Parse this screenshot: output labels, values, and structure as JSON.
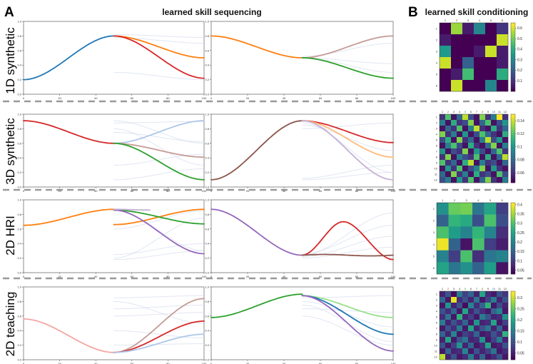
{
  "panel_a_letter": "A",
  "panel_b_letter": "B",
  "title_a": "learned skill sequencing",
  "title_b": "learned skill conditioning",
  "row_labels": [
    "1D synthetic",
    "3D synthetic",
    "2D HRI",
    "2D teaching"
  ],
  "colors": {
    "blue": "#1f77b4",
    "orange": "#ff7f0e",
    "green": "#2ca02c",
    "red": "#d62728",
    "purple": "#9467bd",
    "brown": "#8c564b",
    "pink": "#f4a6a0",
    "tan": "#c49c94",
    "lightblue": "#aec7e8",
    "lightgreen": "#98df8a",
    "lightorange": "#ffbb78",
    "lavender": "#c5b0d5",
    "divider": "#999999"
  },
  "axis": {
    "xticks": [
      0,
      20,
      40,
      60,
      80,
      100
    ],
    "yticks": [
      0.0,
      0.2,
      0.4,
      0.6,
      0.8,
      1.0
    ]
  },
  "chart_data": [
    {
      "id": "1d-left",
      "type": "line",
      "xlim": [
        0,
        100
      ],
      "ylim": [
        0,
        1
      ],
      "series": [
        {
          "color": "blue",
          "x0": 0,
          "x1": 50,
          "y0": 0.2,
          "y1": 0.8,
          "shape": "sig"
        },
        {
          "color": "orange",
          "x0": 50,
          "x1": 100,
          "y0": 0.8,
          "y1": 0.5,
          "shape": "sig"
        },
        {
          "color": "red",
          "x0": 50,
          "x1": 100,
          "y0": 0.8,
          "y1": 0.22,
          "shape": "sig"
        }
      ],
      "faded": [
        {
          "y0": 0.82,
          "y1": 0.78
        },
        {
          "y0": 0.78,
          "y1": 0.7
        },
        {
          "y0": 0.3,
          "y1": 0.2
        }
      ]
    },
    {
      "id": "1d-right",
      "type": "line",
      "xlim": [
        0,
        100
      ],
      "ylim": [
        0,
        1
      ],
      "series": [
        {
          "color": "orange",
          "x0": 0,
          "x1": 50,
          "y0": 0.8,
          "y1": 0.5,
          "shape": "sig"
        },
        {
          "color": "tan",
          "x0": 50,
          "x1": 100,
          "y0": 0.5,
          "y1": 0.8,
          "shape": "sig"
        },
        {
          "color": "green",
          "x0": 50,
          "x1": 100,
          "y0": 0.5,
          "y1": 0.22,
          "shape": "sig"
        }
      ],
      "faded": [
        {
          "y0": 0.5,
          "y1": 0.3
        },
        {
          "y0": 0.5,
          "y1": 0.42
        },
        {
          "y0": 0.52,
          "y1": 0.7
        }
      ]
    },
    {
      "id": "3d-left",
      "type": "line",
      "xlim": [
        0,
        100
      ],
      "ylim": [
        0,
        1
      ],
      "series": [
        {
          "color": "red",
          "x0": 0,
          "x1": 50,
          "y0": 0.91,
          "y1": 0.6,
          "shape": "sig"
        },
        {
          "color": "lightblue",
          "x0": 50,
          "x1": 100,
          "y0": 0.6,
          "y1": 0.91,
          "shape": "sig"
        },
        {
          "color": "tan",
          "x0": 50,
          "x1": 100,
          "y0": 0.6,
          "y1": 0.41,
          "shape": "sig"
        },
        {
          "color": "green",
          "x0": 50,
          "x1": 100,
          "y0": 0.6,
          "y1": 0.1,
          "shape": "sig"
        }
      ],
      "faded": [
        {
          "y0": 0.91,
          "y1": 0.6
        },
        {
          "y0": 0.88,
          "y1": 0.9
        },
        {
          "y0": 0.8,
          "y1": 0.3
        },
        {
          "y0": 0.3,
          "y1": 0.45
        },
        {
          "y0": 0.1,
          "y1": 0.25
        },
        {
          "y0": 0.75,
          "y1": 0.62
        }
      ]
    },
    {
      "id": "3d-right",
      "type": "line",
      "xlim": [
        0,
        100
      ],
      "ylim": [
        0,
        1
      ],
      "series": [
        {
          "color": "brown",
          "x0": 0,
          "x1": 50,
          "y0": 0.1,
          "y1": 0.91,
          "shape": "sig"
        },
        {
          "color": "red",
          "x0": 50,
          "x1": 100,
          "y0": 0.91,
          "y1": 0.61,
          "shape": "sig"
        },
        {
          "color": "lightorange",
          "x0": 50,
          "x1": 100,
          "y0": 0.91,
          "y1": 0.41,
          "shape": "sig"
        },
        {
          "color": "lavender",
          "x0": 50,
          "x1": 100,
          "y0": 0.91,
          "y1": 0.1,
          "shape": "sig"
        }
      ],
      "faded": [
        {
          "y0": 0.88,
          "y1": 0.2
        },
        {
          "y0": 0.85,
          "y1": 0.5
        },
        {
          "y0": 0.12,
          "y1": 0.3
        },
        {
          "y0": 0.1,
          "y1": 0.2
        },
        {
          "y0": 0.8,
          "y1": 0.88
        }
      ]
    },
    {
      "id": "hri-left",
      "type": "line",
      "xlim": [
        0,
        100
      ],
      "ylim": [
        0,
        1
      ],
      "series": [
        {
          "color": "orange",
          "x0": 0,
          "x1": 50,
          "y0": 0.65,
          "y1": 0.87,
          "shape": "sig"
        },
        {
          "color": "orange",
          "x0": 50,
          "x1": 100,
          "y0": 0.66,
          "y1": 0.87,
          "shape": "sig"
        },
        {
          "color": "green",
          "x0": 50,
          "x1": 100,
          "y0": 0.86,
          "y1": 0.67,
          "shape": "sig"
        },
        {
          "color": "purple",
          "x0": 50,
          "x1": 100,
          "y0": 0.86,
          "y1": 0.26,
          "shape": "sig"
        },
        {
          "color": "lavender",
          "x0": 50,
          "x1": 70,
          "y0": 0.87,
          "y1": 0.86,
          "shape": "sig"
        }
      ],
      "faded": [
        {
          "y0": 0.2,
          "y1": 0.75
        },
        {
          "y0": 0.25,
          "y1": 0.4
        },
        {
          "y0": 0.18,
          "y1": 0.3
        },
        {
          "y0": 0.6,
          "y1": 0.85
        },
        {
          "y0": 0.85,
          "y1": 0.3
        }
      ]
    },
    {
      "id": "hri-right",
      "type": "line",
      "xlim": [
        0,
        100
      ],
      "ylim": [
        0,
        1
      ],
      "series": [
        {
          "color": "purple",
          "x0": 0,
          "x1": 50,
          "y0": 0.87,
          "y1": 0.24,
          "shape": "sig"
        },
        {
          "color": "red",
          "x0": 50,
          "x1": 100,
          "y0": 0.24,
          "y1": 0.7,
          "y2": 0.18,
          "shape": "bump"
        },
        {
          "color": "brown",
          "x0": 50,
          "x1": 100,
          "y0": 0.24,
          "y1": 0.24,
          "shape": "flat"
        }
      ],
      "faded": [
        {
          "y0": 0.24,
          "y1": 0.82
        },
        {
          "y0": 0.22,
          "y1": 0.5
        },
        {
          "y0": 0.26,
          "y1": 0.65
        },
        {
          "y0": 0.2,
          "y1": 0.35
        }
      ]
    },
    {
      "id": "teach-left",
      "type": "line",
      "xlim": [
        0,
        100
      ],
      "ylim": [
        0,
        1
      ],
      "series": [
        {
          "color": "pink",
          "x0": 0,
          "x1": 50,
          "y0": 0.56,
          "y1": 0.1,
          "shape": "sig"
        },
        {
          "color": "tan",
          "x0": 50,
          "x1": 100,
          "y0": 0.1,
          "y1": 0.84,
          "shape": "sig"
        },
        {
          "color": "red",
          "x0": 50,
          "x1": 100,
          "y0": 0.1,
          "y1": 0.53,
          "shape": "sig"
        },
        {
          "color": "lightblue",
          "x0": 50,
          "x1": 100,
          "y0": 0.1,
          "y1": 0.35,
          "shape": "sig"
        }
      ],
      "faded": [
        {
          "y0": 0.85,
          "y1": 0.88
        },
        {
          "y0": 0.7,
          "y1": 0.75
        },
        {
          "y0": 0.6,
          "y1": 0.65
        },
        {
          "y0": 0.4,
          "y1": 0.3
        },
        {
          "y0": 0.2,
          "y1": 0.22
        },
        {
          "y0": 0.8,
          "y1": 0.5
        }
      ]
    },
    {
      "id": "teach-right",
      "type": "line",
      "xlim": [
        0,
        100
      ],
      "ylim": [
        0,
        1
      ],
      "series": [
        {
          "color": "green",
          "x0": 0,
          "x1": 50,
          "y0": 0.58,
          "y1": 0.9,
          "shape": "sig"
        },
        {
          "color": "lightgreen",
          "x0": 50,
          "x1": 100,
          "y0": 0.88,
          "y1": 0.58,
          "shape": "sig"
        },
        {
          "color": "blue",
          "x0": 50,
          "x1": 100,
          "y0": 0.88,
          "y1": 0.35,
          "shape": "sig"
        },
        {
          "color": "purple",
          "x0": 50,
          "x1": 100,
          "y0": 0.88,
          "y1": 0.12,
          "shape": "sig"
        }
      ],
      "faded": [
        {
          "y0": 0.85,
          "y1": 0.88
        },
        {
          "y0": 0.8,
          "y1": 0.45
        },
        {
          "y0": 0.75,
          "y1": 0.25
        },
        {
          "y0": 0.7,
          "y1": 0.65
        },
        {
          "y0": 0.6,
          "y1": 0.2
        }
      ]
    },
    {
      "id": "hm-1d",
      "type": "heatmap",
      "n": 6,
      "vmin": 0.0,
      "vmax": 0.65,
      "xlabels": [
        "1",
        "2",
        "3",
        "4",
        "5",
        "6"
      ],
      "ylabels": [
        "1",
        "2",
        "3",
        "4",
        "5",
        "6"
      ],
      "cbar_ticks": [
        0.1,
        0.2,
        0.3,
        0.4,
        0.5,
        0.6
      ],
      "values": [
        [
          0.0,
          0.55,
          0.05,
          0.3,
          0.0,
          0.1
        ],
        [
          0.05,
          0.0,
          0.0,
          0.0,
          0.0,
          0.6
        ],
        [
          0.35,
          0.0,
          0.0,
          0.05,
          0.6,
          0.05
        ],
        [
          0.6,
          0.0,
          0.2,
          0.0,
          0.0,
          0.05
        ],
        [
          0.0,
          0.05,
          0.45,
          0.0,
          0.0,
          0.4
        ],
        [
          0.0,
          0.6,
          0.0,
          0.0,
          0.3,
          0.0
        ]
      ]
    },
    {
      "id": "hm-3d",
      "type": "heatmap",
      "n": 12,
      "vmin": 0.045,
      "vmax": 0.15,
      "xlabels": [
        "1",
        "2",
        "3",
        "4",
        "5",
        "6",
        "7",
        "8",
        "9",
        "10",
        "11",
        "12"
      ],
      "ylabels": [
        "1",
        "2",
        "3",
        "4",
        "5",
        "6",
        "7",
        "8",
        "9",
        "10",
        "11",
        "12"
      ],
      "cbar_ticks": [
        0.06,
        0.08,
        0.1,
        0.12,
        0.14
      ],
      "values": [
        [
          0.06,
          0.12,
          0.05,
          0.08,
          0.14,
          0.07,
          0.05,
          0.13,
          0.06,
          0.09,
          0.15,
          0.06
        ],
        [
          0.09,
          0.05,
          0.11,
          0.06,
          0.07,
          0.13,
          0.05,
          0.08,
          0.12,
          0.05,
          0.07,
          0.1
        ],
        [
          0.05,
          0.08,
          0.06,
          0.12,
          0.05,
          0.09,
          0.14,
          0.06,
          0.05,
          0.11,
          0.06,
          0.08
        ],
        [
          0.13,
          0.06,
          0.09,
          0.05,
          0.1,
          0.05,
          0.07,
          0.12,
          0.08,
          0.06,
          0.05,
          0.11
        ],
        [
          0.07,
          0.11,
          0.05,
          0.13,
          0.06,
          0.08,
          0.05,
          0.09,
          0.14,
          0.07,
          0.1,
          0.05
        ],
        [
          0.05,
          0.09,
          0.12,
          0.07,
          0.05,
          0.11,
          0.06,
          0.05,
          0.08,
          0.13,
          0.05,
          0.09
        ],
        [
          0.1,
          0.05,
          0.07,
          0.06,
          0.13,
          0.05,
          0.1,
          0.07,
          0.05,
          0.08,
          0.12,
          0.06
        ],
        [
          0.06,
          0.13,
          0.05,
          0.09,
          0.07,
          0.06,
          0.12,
          0.05,
          0.11,
          0.05,
          0.08,
          0.14
        ],
        [
          0.12,
          0.06,
          0.08,
          0.05,
          0.11,
          0.14,
          0.05,
          0.09,
          0.06,
          0.07,
          0.05,
          0.08
        ],
        [
          0.05,
          0.1,
          0.06,
          0.12,
          0.05,
          0.07,
          0.09,
          0.13,
          0.05,
          0.1,
          0.06,
          0.05
        ],
        [
          0.08,
          0.05,
          0.13,
          0.06,
          0.09,
          0.05,
          0.11,
          0.06,
          0.07,
          0.05,
          0.12,
          0.07
        ],
        [
          0.07,
          0.09,
          0.05,
          0.1,
          0.06,
          0.12,
          0.05,
          0.08,
          0.13,
          0.06,
          0.05,
          0.09
        ]
      ]
    },
    {
      "id": "hm-hri",
      "type": "heatmap",
      "n": 6,
      "vmin": 0.03,
      "vmax": 0.41,
      "xlabels": [
        "1",
        "2",
        "3",
        "4",
        "5",
        "6"
      ],
      "ylabels": [
        "1",
        "2",
        "3",
        "4",
        "5",
        "6"
      ],
      "cbar_ticks": [
        0.05,
        0.1,
        0.15,
        0.2,
        0.25,
        0.3,
        0.35,
        0.4
      ],
      "values": [
        [
          0.22,
          0.32,
          0.33,
          0.18,
          0.25,
          0.1
        ],
        [
          0.15,
          0.28,
          0.26,
          0.12,
          0.3,
          0.12
        ],
        [
          0.3,
          0.24,
          0.2,
          0.28,
          0.2,
          0.08
        ],
        [
          0.4,
          0.15,
          0.05,
          0.3,
          0.1,
          0.06
        ],
        [
          0.2,
          0.1,
          0.3,
          0.08,
          0.18,
          0.2
        ],
        [
          0.25,
          0.18,
          0.22,
          0.15,
          0.24,
          0.05
        ]
      ]
    },
    {
      "id": "hm-teach",
      "type": "heatmap",
      "n": 12,
      "vmin": 0.02,
      "vmax": 0.33,
      "xlabels": [
        "1",
        "2",
        "3",
        "4",
        "5",
        "6",
        "7",
        "8",
        "9",
        "10",
        "11",
        "12"
      ],
      "ylabels": [
        "1",
        "2",
        "3",
        "4",
        "5",
        "6",
        "7",
        "8",
        "9",
        "10",
        "11",
        "12"
      ],
      "cbar_ticks": [
        0.05,
        0.1,
        0.15,
        0.2,
        0.25,
        0.3
      ],
      "values": [
        [
          0.05,
          0.1,
          0.03,
          0.15,
          0.08,
          0.12,
          0.05,
          0.2,
          0.06,
          0.04,
          0.1,
          0.07
        ],
        [
          0.12,
          0.04,
          0.32,
          0.06,
          0.1,
          0.05,
          0.14,
          0.04,
          0.08,
          0.15,
          0.05,
          0.1
        ],
        [
          0.04,
          0.18,
          0.05,
          0.1,
          0.03,
          0.16,
          0.06,
          0.12,
          0.22,
          0.04,
          0.09,
          0.05
        ],
        [
          0.1,
          0.06,
          0.12,
          0.04,
          0.2,
          0.05,
          0.1,
          0.06,
          0.04,
          0.12,
          0.16,
          0.04
        ],
        [
          0.06,
          0.14,
          0.04,
          0.22,
          0.05,
          0.08,
          0.04,
          0.15,
          0.1,
          0.05,
          0.06,
          0.18
        ],
        [
          0.15,
          0.05,
          0.1,
          0.06,
          0.12,
          0.04,
          0.18,
          0.05,
          0.06,
          0.2,
          0.04,
          0.08
        ],
        [
          0.04,
          0.1,
          0.06,
          0.15,
          0.04,
          0.2,
          0.05,
          0.1,
          0.14,
          0.05,
          0.12,
          0.04
        ],
        [
          0.12,
          0.05,
          0.16,
          0.04,
          0.08,
          0.06,
          0.12,
          0.04,
          0.05,
          0.1,
          0.06,
          0.22
        ],
        [
          0.05,
          0.2,
          0.04,
          0.1,
          0.14,
          0.05,
          0.06,
          0.18,
          0.04,
          0.08,
          0.15,
          0.05
        ],
        [
          0.1,
          0.04,
          0.08,
          0.18,
          0.05,
          0.12,
          0.04,
          0.06,
          0.2,
          0.04,
          0.05,
          0.1
        ],
        [
          0.04,
          0.12,
          0.05,
          0.06,
          0.16,
          0.04,
          0.1,
          0.05,
          0.08,
          0.14,
          0.04,
          0.06
        ],
        [
          0.3,
          0.05,
          0.1,
          0.04,
          0.06,
          0.15,
          0.05,
          0.12,
          0.04,
          0.06,
          0.1,
          0.04
        ]
      ]
    }
  ]
}
